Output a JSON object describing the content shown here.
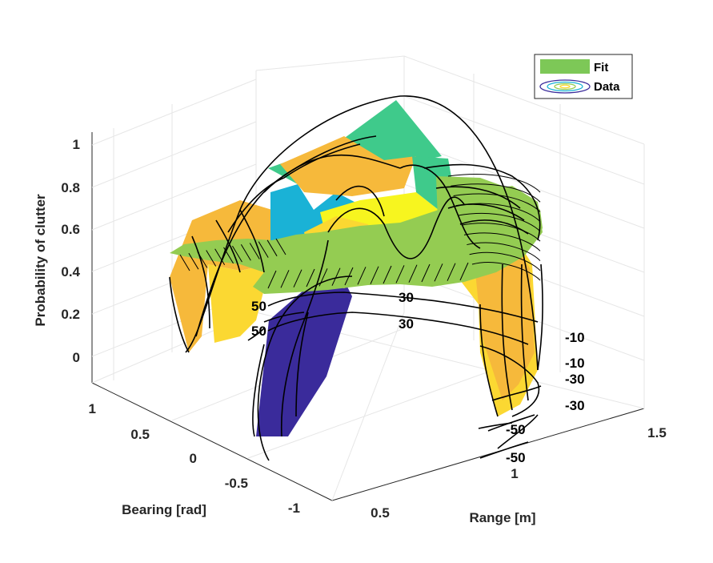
{
  "chart_data": {
    "type": "surface",
    "zlabel": "Probability of clutter",
    "xlabel": "Range [m]",
    "ylabel": "Bearing [rad]",
    "xticks": [
      "0.5",
      "1",
      "1.5"
    ],
    "yticks": [
      "1",
      "0.5",
      "0",
      "-0.5",
      "-1"
    ],
    "zticks": [
      "0",
      "0.2",
      "0.4",
      "0.6",
      "0.8",
      "1"
    ],
    "zlim": [
      0,
      1
    ],
    "grid": true,
    "legend": {
      "position": "top-right",
      "entries": [
        "Fit",
        "Data"
      ]
    },
    "contour_labels": [
      "50",
      "50",
      "30",
      "30",
      "-10",
      "-10",
      "-30",
      "-30",
      "-50",
      "-50"
    ],
    "series": [
      {
        "name": "Fit",
        "color": "#7dc857",
        "style": "surface"
      },
      {
        "name": "Data",
        "color": "#3a2b9b",
        "style": "contour"
      }
    ],
    "colors": [
      "#3a2b9b",
      "#1ab2d6",
      "#3fca8b",
      "#f6b93b",
      "#fbd832",
      "#f7f51f",
      "#94cc52"
    ]
  }
}
